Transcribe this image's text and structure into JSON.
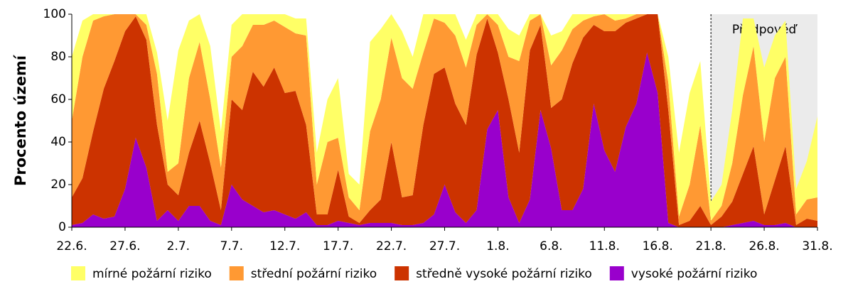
{
  "chart_data": {
    "type": "stacked_area",
    "y_label": "Procento území",
    "categories": [
      "22.6.",
      null,
      null,
      null,
      null,
      "27.6.",
      null,
      null,
      null,
      null,
      "2.7.",
      null,
      null,
      null,
      null,
      "7.7.",
      null,
      null,
      null,
      null,
      "12.7.",
      null,
      null,
      null,
      null,
      "17.7.",
      null,
      null,
      null,
      null,
      "22.7.",
      null,
      null,
      null,
      null,
      "27.7.",
      null,
      null,
      null,
      null,
      "1.8.",
      null,
      null,
      null,
      null,
      "6.8.",
      null,
      null,
      null,
      null,
      "11.8.",
      null,
      null,
      null,
      null,
      "16.8.",
      null,
      null,
      null,
      null,
      "21.8.",
      null,
      null,
      null,
      null,
      "26.8.",
      null,
      null,
      null,
      null,
      "31.8."
    ],
    "series": [
      {
        "name": "mírné požární riziko",
        "color": "#ffff66",
        "values": [
          30,
          17,
          3,
          1,
          0,
          0,
          0,
          5,
          10,
          24,
          53,
          27,
          13,
          25,
          17,
          15,
          15,
          5,
          5,
          3,
          6,
          7,
          8,
          15,
          20,
          28,
          11,
          12,
          42,
          33,
          11,
          22,
          15,
          18,
          2,
          4,
          10,
          13,
          5,
          0,
          5,
          13,
          12,
          3,
          0,
          14,
          9,
          7,
          3,
          1,
          0,
          3,
          2,
          0,
          0,
          0,
          12,
          30,
          43,
          30,
          9,
          10,
          25,
          36,
          13,
          35,
          20,
          17,
          12,
          18,
          38
        ]
      },
      {
        "name": "střední požární riziko",
        "color": "#ff9933",
        "values": [
          36,
          57,
          52,
          34,
          22,
          8,
          1,
          7,
          24,
          6,
          15,
          35,
          37,
          30,
          20,
          20,
          30,
          22,
          29,
          22,
          31,
          27,
          42,
          14,
          34,
          15,
          9,
          6,
          37,
          47,
          49,
          56,
          50,
          34,
          26,
          21,
          32,
          27,
          14,
          2,
          13,
          20,
          43,
          14,
          5,
          20,
          23,
          16,
          8,
          4,
          8,
          5,
          2,
          2,
          0,
          0,
          13,
          4,
          17,
          38,
          2,
          5,
          18,
          37,
          47,
          34,
          48,
          42,
          5,
          9,
          11
        ]
      },
      {
        "name": "středně vysoké požární riziko",
        "color": "#cc3300",
        "values": [
          13,
          21,
          39,
          61,
          73,
          74,
          57,
          60,
          45,
          12,
          12,
          25,
          40,
          27,
          7,
          40,
          42,
          63,
          59,
          67,
          57,
          60,
          41,
          5,
          5,
          24,
          3,
          1,
          6,
          11,
          38,
          13,
          14,
          46,
          66,
          55,
          51,
          46,
          73,
          52,
          27,
          46,
          33,
          70,
          40,
          19,
          52,
          69,
          71,
          37,
          56,
          66,
          49,
          40,
          18,
          37,
          53,
          1,
          3,
          10,
          1,
          5,
          11,
          23,
          35,
          5,
          21,
          36,
          1,
          4,
          3
        ]
      },
      {
        "name": "vysoké požární riziko",
        "color": "#9900cc",
        "values": [
          1,
          2,
          6,
          4,
          5,
          18,
          42,
          28,
          3,
          8,
          3,
          10,
          10,
          3,
          1,
          20,
          13,
          10,
          7,
          8,
          6,
          4,
          7,
          1,
          1,
          3,
          2,
          1,
          2,
          2,
          2,
          1,
          1,
          2,
          6,
          20,
          7,
          2,
          8,
          46,
          55,
          14,
          2,
          13,
          55,
          37,
          8,
          8,
          18,
          58,
          36,
          26,
          47,
          58,
          82,
          63,
          2,
          0,
          0,
          0,
          0,
          0,
          1,
          2,
          3,
          1,
          1,
          2,
          0,
          0,
          0
        ]
      }
    ],
    "ylim": [
      0,
      100
    ],
    "yticks": [
      0,
      20,
      40,
      60,
      80,
      100
    ],
    "forecast": {
      "label": "Předpověď",
      "from": "21.8.",
      "color": "#ebebeb"
    },
    "grid": false
  }
}
